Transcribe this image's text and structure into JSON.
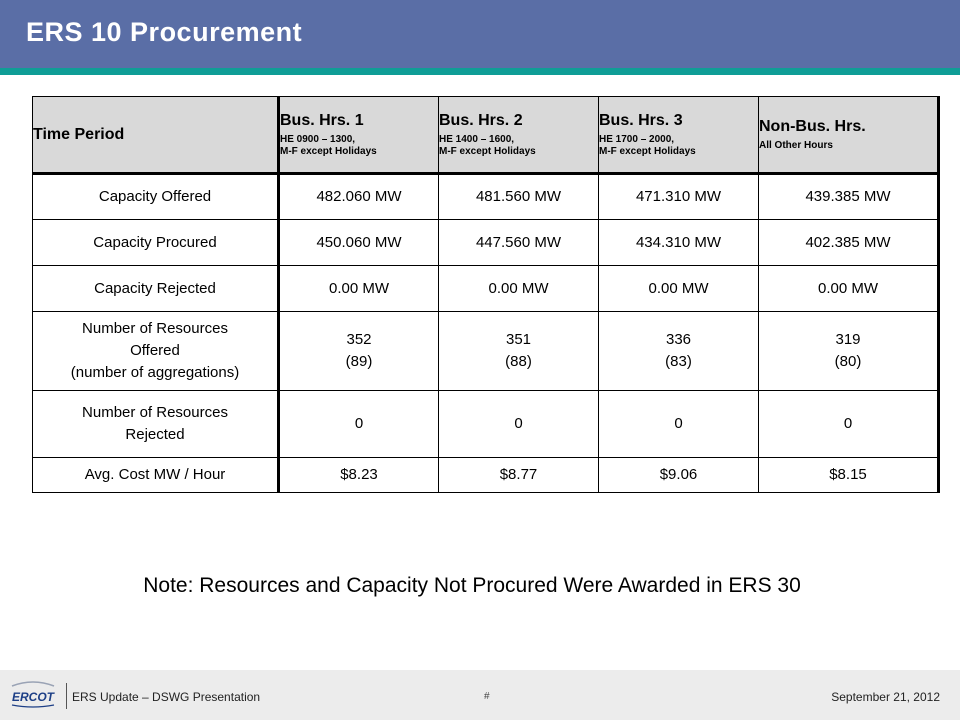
{
  "slide": {
    "title": "ERS 10 Procurement",
    "colors": {
      "header_bg": "#5a6ea6",
      "accent_bar": "#0f9d96",
      "table_header_bg": "#d9d9d9"
    }
  },
  "table": {
    "headers": [
      {
        "main": "Time Period",
        "sub1": "",
        "sub2": ""
      },
      {
        "main": "Bus. Hrs. 1",
        "sub1": "HE 0900 – 1300,",
        "sub2": "M-F except Holidays"
      },
      {
        "main": "Bus. Hrs. 2",
        "sub1": "HE 1400 – 1600,",
        "sub2": "M-F except Holidays"
      },
      {
        "main": "Bus. Hrs. 3",
        "sub1": "HE 1700 – 2000,",
        "sub2": "M-F except Holidays"
      },
      {
        "main": "Non-Bus. Hrs.",
        "sub1": "All Other Hours",
        "sub2": ""
      }
    ],
    "rows": [
      {
        "label": [
          "Capacity Offered"
        ],
        "cells": [
          [
            "482.060 MW"
          ],
          [
            "481.560 MW"
          ],
          [
            "471.310 MW"
          ],
          [
            "439.385 MW"
          ]
        ]
      },
      {
        "label": [
          "Capacity Procured"
        ],
        "cells": [
          [
            "450.060 MW"
          ],
          [
            "447.560 MW"
          ],
          [
            "434.310 MW"
          ],
          [
            "402.385 MW"
          ]
        ]
      },
      {
        "label": [
          "Capacity Rejected"
        ],
        "cells": [
          [
            "0.00 MW"
          ],
          [
            "0.00 MW"
          ],
          [
            "0.00 MW"
          ],
          [
            "0.00 MW"
          ]
        ]
      },
      {
        "label": [
          "Number of Resources",
          "Offered",
          "(number of aggregations)"
        ],
        "cells": [
          [
            "352",
            "(89)"
          ],
          [
            "351",
            "(88)"
          ],
          [
            "336",
            "(83)"
          ],
          [
            "319",
            "(80)"
          ]
        ]
      },
      {
        "label": [
          "Number of Resources",
          "Rejected"
        ],
        "cells": [
          [
            "0"
          ],
          [
            "0"
          ],
          [
            "0"
          ],
          [
            "0"
          ]
        ]
      },
      {
        "label": [
          "Avg. Cost MW / Hour"
        ],
        "cells": [
          [
            "$8.23"
          ],
          [
            "$8.77"
          ],
          [
            "$9.06"
          ],
          [
            "$8.15"
          ]
        ]
      }
    ]
  },
  "note": "Note: Resources and Capacity Not Procured Were Awarded in ERS 30",
  "footer": {
    "logo_text": "ERCOT",
    "presentation": "ERS Update – DSWG Presentation",
    "page_number": "#",
    "date": "September 21, 2012"
  }
}
